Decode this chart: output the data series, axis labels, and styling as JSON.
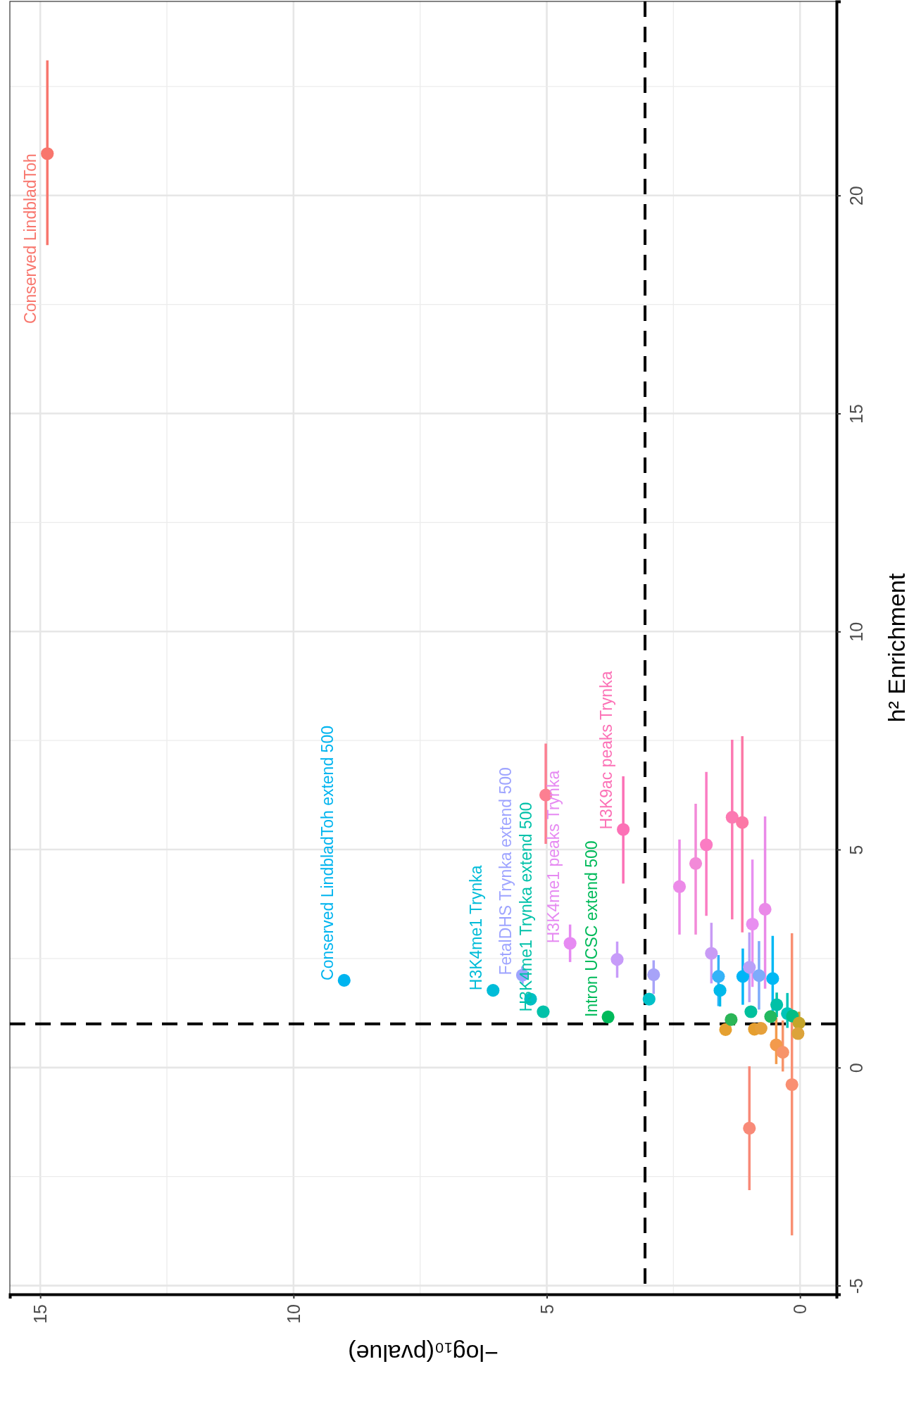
{
  "chart_data": {
    "type": "scatter",
    "xlabel": "−log₁₀(pvalue)",
    "ylabel": "h² Enrichment",
    "marker": "circle",
    "grid": true,
    "xlim": [
      15.6,
      -0.72
    ],
    "ylim": [
      -5.2,
      24.45
    ],
    "xticks": [
      15,
      10,
      5,
      0
    ],
    "yticks": [
      -5,
      0,
      5,
      10,
      15,
      20
    ],
    "x": [
      14.86,
      9.0,
      6.06,
      5.48,
      5.32,
      5.07,
      5.02,
      4.54,
      3.79,
      3.61,
      3.49,
      2.98,
      2.89,
      1.75,
      1.61,
      1.58,
      1.13,
      0.97,
      1.0,
      0.94,
      0.81,
      0.54,
      1.47,
      1.36,
      0.9,
      0.77,
      0.58,
      0.46,
      0.25,
      0.15,
      0.02,
      0.04,
      0.47,
      0.34,
      0.16,
      1.0,
      2.38,
      2.06,
      1.85,
      1.34,
      1.14,
      0.69
    ],
    "values": [
      20.96,
      2.0,
      1.77,
      2.12,
      1.57,
      1.28,
      6.25,
      2.85,
      1.16,
      2.48,
      5.46,
      1.57,
      2.13,
      2.62,
      2.09,
      1.77,
      2.09,
      1.28,
      2.3,
      3.29,
      2.11,
      2.04,
      0.87,
      1.1,
      0.88,
      0.9,
      1.17,
      1.44,
      1.24,
      1.18,
      1.02,
      0.78,
      0.52,
      0.35,
      -0.39,
      -1.39,
      4.15,
      4.68,
      5.11,
      5.74,
      5.62,
      3.63
    ],
    "errors": [
      [
        18.86,
        23.1
      ],
      null,
      null,
      [
        1.92,
        2.32
      ],
      null,
      null,
      [
        5.13,
        7.43
      ],
      [
        2.42,
        3.28
      ],
      null,
      [
        2.06,
        2.89
      ],
      [
        4.22,
        6.68
      ],
      null,
      [
        1.69,
        2.46
      ],
      [
        1.93,
        3.32
      ],
      [
        1.41,
        2.58
      ],
      [
        1.4,
        1.77
      ],
      [
        1.44,
        2.73
      ],
      [
        1.17,
        1.4
      ],
      [
        1.5,
        3.1
      ],
      [
        1.85,
        4.77
      ],
      [
        1.33,
        2.9
      ],
      [
        1.04,
        3.02
      ],
      null,
      null,
      null,
      null,
      null,
      [
        1.16,
        1.72
      ],
      [
        0.91,
        1.71
      ],
      null,
      [
        0.66,
        1.28
      ],
      null,
      [
        0.08,
        1.15
      ],
      [
        -0.09,
        1.08
      ],
      [
        -3.85,
        3.08
      ],
      [
        -2.81,
        0.03
      ],
      [
        3.05,
        5.23
      ],
      [
        3.05,
        6.05
      ],
      [
        3.48,
        6.78
      ],
      [
        3.4,
        7.52
      ],
      [
        3.1,
        7.6
      ],
      [
        1.81,
        5.76
      ]
    ],
    "colors": [
      "#f8766d",
      "#00b4ef",
      "#00bcd8",
      "#9ea4ff",
      "#00bfc4",
      "#00c1a9",
      "#fc7f91",
      "#e68af2",
      "#00ba5a",
      "#c79bf9",
      "#fc71b6",
      "#00c0c8",
      "#a7a3f8",
      "#c89bf5",
      "#35b3f8",
      "#00b9ea",
      "#00b5f7",
      "#00c09c",
      "#b9a0f8",
      "#e88ff0",
      "#7dabfb",
      "#00b8f4",
      "#e5a030",
      "#2bb557",
      "#e69f2f",
      "#e6a03a",
      "#23b85e",
      "#00c1a7",
      "#00c4b8",
      "#00bd85",
      "#c5a52a",
      "#dca33a",
      "#f39a4c",
      "#f7946a",
      "#f98f72",
      "#f88a78",
      "#ec8ae8",
      "#f28ad8",
      "#fb7cc3",
      "#fc79b2",
      "#fc78a6",
      "#ea8ae8"
    ],
    "ref_lines": [
      {
        "axis": "y",
        "value": 1,
        "line_style": "dashed"
      },
      {
        "axis": "x",
        "value": 3.06,
        "line_style": "dashed"
      }
    ],
    "annotations": [
      {
        "text": "Conserved LindbladToh",
        "x": 14.86,
        "y": 20.96
      },
      {
        "text": "Conserved LindbladToh extend 500",
        "x": 9.0,
        "y": 2.0
      },
      {
        "text": "H3K4me1 Trynka",
        "x": 6.06,
        "y": 1.77
      },
      {
        "text": "FetalDHS Trynka extend 500",
        "x": 5.48,
        "y": 2.12
      },
      {
        "text": "H3K4me1 Trynka extend 500",
        "x": 5.07,
        "y": 1.28
      },
      {
        "text": "H3K4me1 peaks Trynka",
        "x": 4.54,
        "y": 2.85
      },
      {
        "text": "Intron UCSC extend 500",
        "x": 3.79,
        "y": 1.16
      },
      {
        "text": "H3K9ac peaks Trynka",
        "x": 3.49,
        "y": 5.46
      }
    ]
  }
}
